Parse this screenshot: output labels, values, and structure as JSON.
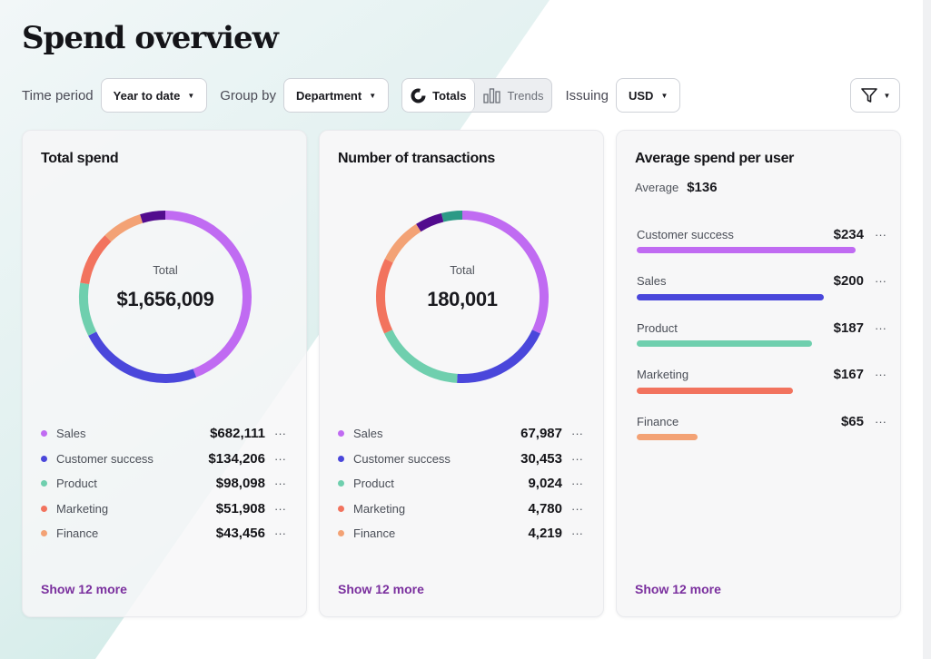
{
  "page": {
    "title": "Spend overview"
  },
  "toolbar": {
    "time_period_label": "Time period",
    "time_period_value": "Year to date",
    "group_by_label": "Group by",
    "group_by_value": "Department",
    "view_toggle": {
      "totals_label": "Totals",
      "trends_label": "Trends",
      "selected": "Totals"
    },
    "issuing_label": "Issuing",
    "currency_value": "USD",
    "filter_icon": "filter-icon"
  },
  "colors": {
    "sales": "#c06bf2",
    "customer_success": "#4a47db",
    "product": "#6fcfae",
    "marketing": "#f2735e",
    "finance": "#f3a275",
    "other_1": "#520b8e",
    "other_2": "#2c9a86",
    "link": "#7a2f9e"
  },
  "cards": {
    "total_spend": {
      "title": "Total spend",
      "center_label": "Total",
      "center_value": "$1,656,009",
      "items": [
        {
          "name": "Sales",
          "value": "$682,111"
        },
        {
          "name": "Customer success",
          "value": "$134,206"
        },
        {
          "name": "Product",
          "value": "$98,098"
        },
        {
          "name": "Marketing",
          "value": "$51,908"
        },
        {
          "name": "Finance",
          "value": "$43,456"
        }
      ],
      "show_more": "Show 12 more"
    },
    "transactions": {
      "title": "Number of transactions",
      "center_label": "Total",
      "center_value": "180,001",
      "items": [
        {
          "name": "Sales",
          "value": "67,987"
        },
        {
          "name": "Customer success",
          "value": "30,453"
        },
        {
          "name": "Product",
          "value": "9,024"
        },
        {
          "name": "Marketing",
          "value": "4,780"
        },
        {
          "name": "Finance",
          "value": "4,219"
        }
      ],
      "show_more": "Show 12 more"
    },
    "avg_spend": {
      "title": "Average spend per user",
      "average_label": "Average",
      "average_value": "$136",
      "items": [
        {
          "name": "Customer success",
          "value": "$234"
        },
        {
          "name": "Sales",
          "value": "$200"
        },
        {
          "name": "Product",
          "value": "$187"
        },
        {
          "name": "Marketing",
          "value": "$167"
        },
        {
          "name": "Finance",
          "value": "$65"
        }
      ],
      "show_more": "Show 12 more"
    }
  },
  "chart_data": [
    {
      "type": "pie",
      "title": "Total spend",
      "categories": [
        "Sales",
        "Customer success",
        "Product",
        "Marketing",
        "Finance",
        "Other"
      ],
      "values": [
        0.415,
        0.22,
        0.0945,
        0.0945,
        0.0715,
        0.0445
      ],
      "colors": [
        "#c06bf2",
        "#4a47db",
        "#6fcfae",
        "#f2735e",
        "#f3a275",
        "#520b8e"
      ]
    },
    {
      "type": "pie",
      "title": "Number of transactions",
      "categories": [
        "Sales",
        "Customer success",
        "Product",
        "Marketing",
        "Finance",
        "Other",
        "Other"
      ],
      "values": [
        0.32,
        0.19,
        0.17,
        0.143,
        0.087,
        0.051,
        0.039
      ],
      "colors": [
        "#c06bf2",
        "#4a47db",
        "#6fcfae",
        "#f2735e",
        "#f3a275",
        "#520b8e",
        "#2c9a86"
      ]
    },
    {
      "type": "bar",
      "title": "Average spend per user",
      "categories": [
        "Customer success",
        "Sales",
        "Product",
        "Marketing",
        "Finance"
      ],
      "values": [
        234,
        200,
        187,
        167,
        65
      ],
      "colors": [
        "#c06bf2",
        "#4a47db",
        "#6fcfae",
        "#f2735e",
        "#f3a275"
      ]
    }
  ]
}
